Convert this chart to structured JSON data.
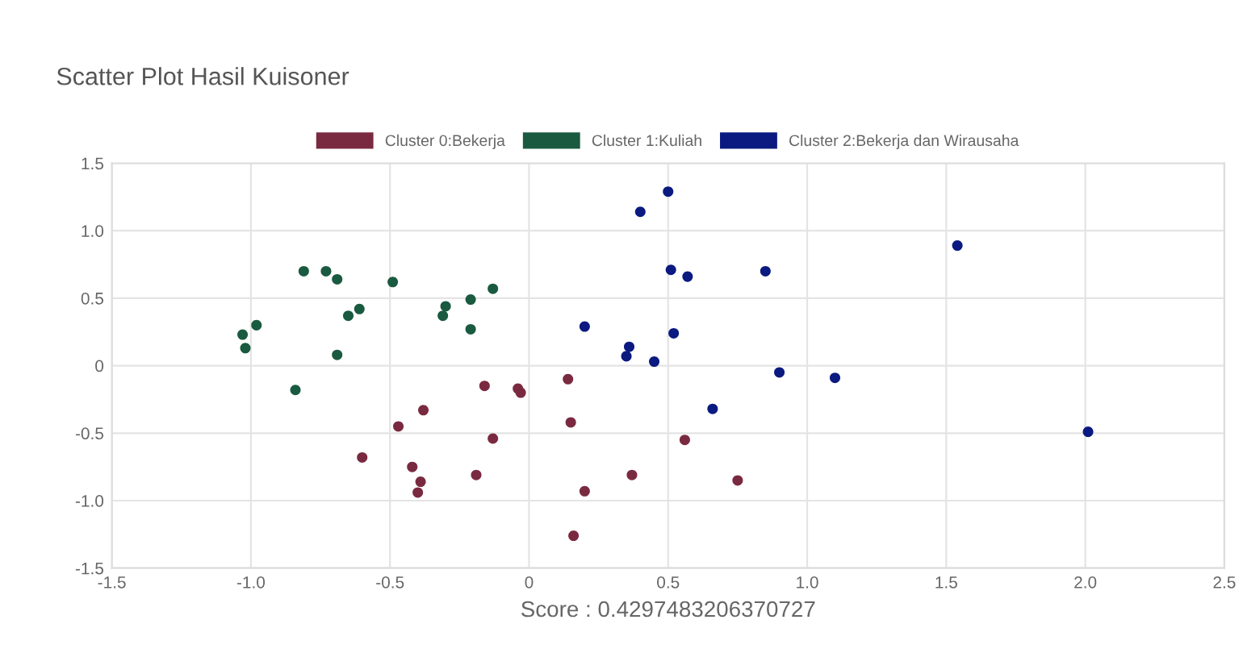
{
  "chart_data": {
    "type": "scatter",
    "title": "Scatter Plot Hasil Kuisoner",
    "xlabel": "Score : 0.4297483206370727",
    "xlim": [
      -1.5,
      2.5
    ],
    "xticks": [
      -1.5,
      {
        "value": -1,
        "label": "-1.0"
      },
      -0.5,
      0,
      0.5,
      {
        "value": 1,
        "label": "1.0"
      },
      1.5,
      {
        "value": 2,
        "label": "2.0"
      },
      2.5
    ],
    "ylim": [
      -1.5,
      1.5
    ],
    "yticks": [
      -1.5,
      {
        "value": -1,
        "label": "-1.0"
      },
      -0.5,
      0,
      0.5,
      {
        "value": 1,
        "label": "1.0"
      },
      1.5
    ],
    "grid": true,
    "legend": "top",
    "marker": "circle",
    "series": [
      {
        "name": "Cluster 0:Bekerja",
        "color": "#7a2a40",
        "x": [
          -0.16,
          -0.04,
          -0.03,
          -0.38,
          -0.47,
          -0.13,
          -0.6,
          -0.42,
          -0.19,
          -0.39,
          -0.4,
          0.14,
          0.15,
          0.56,
          0.37,
          0.75,
          0.2,
          0.16
        ],
        "values": [
          -0.15,
          -0.17,
          -0.2,
          -0.33,
          -0.45,
          -0.54,
          -0.68,
          -0.75,
          -0.81,
          -0.86,
          -0.94,
          -0.1,
          -0.42,
          -0.55,
          -0.81,
          -0.85,
          -0.93,
          -1.26
        ]
      },
      {
        "name": "Cluster 1:Kuliah",
        "color": "#1a5a40",
        "x": [
          -0.81,
          -0.73,
          -0.69,
          -0.49,
          -0.13,
          -0.21,
          -0.3,
          -0.31,
          -0.61,
          -0.65,
          -0.21,
          -0.98,
          -1.03,
          -1.02,
          -0.69,
          -0.84
        ],
        "values": [
          0.7,
          0.7,
          0.64,
          0.62,
          0.57,
          0.49,
          0.44,
          0.37,
          0.42,
          0.37,
          0.27,
          0.3,
          0.23,
          0.13,
          0.08,
          -0.18
        ]
      },
      {
        "name": "Cluster 2:Bekerja dan Wirausaha",
        "color": "#0a1a80",
        "x": [
          0.5,
          0.4,
          0.51,
          0.57,
          0.85,
          0.2,
          0.52,
          0.36,
          0.35,
          0.45,
          0.9,
          1.1,
          0.66,
          1.54,
          2.01
        ],
        "values": [
          1.29,
          1.14,
          0.71,
          0.66,
          0.7,
          0.29,
          0.24,
          0.14,
          0.07,
          0.03,
          -0.05,
          -0.09,
          -0.32,
          0.89,
          -0.49
        ]
      }
    ]
  }
}
